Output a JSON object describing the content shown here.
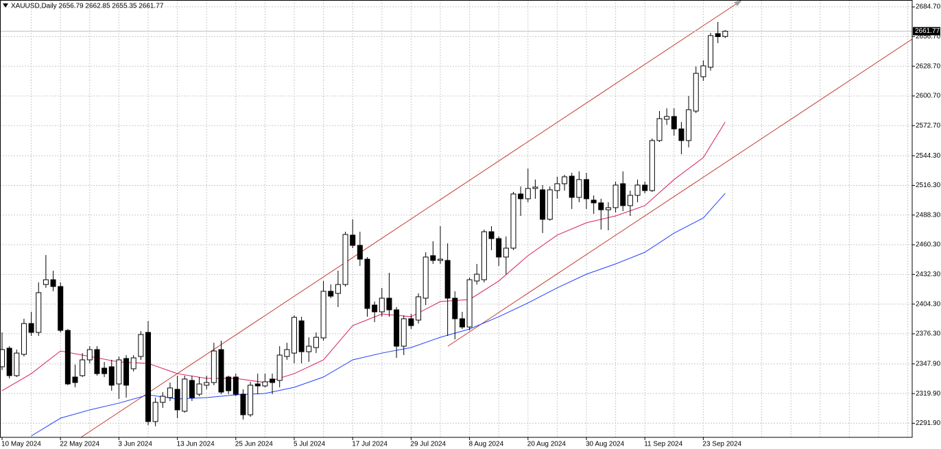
{
  "chart_data": {
    "type": "candlestick",
    "title": "XAUUSD,Daily 2656.79 2662.85 2655.35 2661.77",
    "categories": [
      "10 May 2024",
      null,
      null,
      null,
      null,
      null,
      null,
      null,
      "22 May 2024",
      null,
      null,
      null,
      null,
      null,
      null,
      null,
      "3 Jun 2024",
      null,
      null,
      null,
      null,
      null,
      null,
      null,
      "13 Jun 2024",
      null,
      null,
      null,
      null,
      null,
      null,
      null,
      "25 Jun 2024",
      null,
      null,
      null,
      null,
      null,
      null,
      null,
      "5 Jul 2024",
      null,
      null,
      null,
      null,
      null,
      null,
      null,
      "17 Jul 2024",
      null,
      null,
      null,
      null,
      null,
      null,
      null,
      "29 Jul 2024",
      null,
      null,
      null,
      null,
      null,
      null,
      null,
      "8 Aug 2024",
      null,
      null,
      null,
      null,
      null,
      null,
      null,
      "20 Aug 2024",
      null,
      null,
      null,
      null,
      null,
      null,
      null,
      "30 Aug 2024",
      null,
      null,
      null,
      null,
      null,
      null,
      null,
      "11 Sep 2024",
      null,
      null,
      null,
      null,
      null,
      null,
      null,
      "23 Sep 2024",
      null,
      null,
      null
    ],
    "open": [
      2345.2,
      2362.7,
      2336.8,
      2356.9,
      2386.0,
      2377.6,
      2422.8,
      2427.3,
      2420.9,
      2379.5,
      2335.5,
      2336.8,
      2351.7,
      2361.4,
      2343.9,
      2345.2,
      2329.0,
      2353.0,
      2343.3,
      2354.9,
      2377.6,
      2293.5,
      2311.6,
      2316.1,
      2323.9,
      2303.2,
      2332.3,
      2319.3,
      2327.8,
      2330.3,
      2361.4,
      2335.5,
      2335.5,
      2319.3,
      2299.9,
      2329.0,
      2327.1,
      2333.6,
      2332.3,
      2354.9,
      2358.1,
      2388.5,
      2359.4,
      2363.3,
      2372.4,
      2416.4,
      2414.4,
      2422.8,
      2469.4,
      2459.7,
      2446.7,
      2403.4,
      2397.0,
      2409.9,
      2398.9,
      2364.6,
      2390.5,
      2389.2,
      2409.9,
      2450.0,
      2445.5,
      2445.5,
      2409.9,
      2390.5,
      2382.7,
      2426.1,
      2427.3,
      2472.6,
      2466.1,
      2448.7,
      2457.1,
      2508.2,
      2503.7,
      2513.4,
      2512.1,
      2484.3,
      2511.4,
      2517.9,
      2525.0,
      2505.0,
      2521.8,
      2502.4,
      2499.8,
      2493.3,
      2495.3,
      2517.9,
      2497.2,
      2506.9,
      2516.6,
      2511.4,
      2558.6,
      2578.7,
      2581.3,
      2569.6,
      2558.6,
      2586.4,
      2618.8,
      2627.8,
      2659.5,
      2656.79
    ],
    "high": [
      2377.6,
      2364.6,
      2361.4,
      2390.5,
      2397.0,
      2424.8,
      2450.6,
      2435.8,
      2424.8,
      2380.8,
      2347.2,
      2358.1,
      2364.6,
      2364.6,
      2349.7,
      2351.7,
      2354.9,
      2356.2,
      2356.2,
      2378.8,
      2388.5,
      2316.1,
      2321.3,
      2330.3,
      2336.8,
      2336.8,
      2336.8,
      2335.5,
      2336.8,
      2367.8,
      2369.8,
      2336.8,
      2338.7,
      2323.9,
      2331.0,
      2338.7,
      2338.7,
      2338.7,
      2364.6,
      2367.8,
      2393.7,
      2392.4,
      2373.0,
      2377.6,
      2426.1,
      2422.8,
      2435.8,
      2472.6,
      2484.3,
      2472.6,
      2448.7,
      2406.7,
      2419.6,
      2433.8,
      2401.5,
      2393.7,
      2395.0,
      2414.4,
      2453.2,
      2463.6,
      2477.8,
      2461.6,
      2416.4,
      2397.0,
      2429.3,
      2442.2,
      2474.6,
      2477.8,
      2468.1,
      2468.1,
      2510.1,
      2515.3,
      2532.1,
      2521.8,
      2516.6,
      2515.3,
      2524.4,
      2526.3,
      2528.2,
      2529.5,
      2528.2,
      2506.9,
      2503.7,
      2500.4,
      2519.8,
      2529.5,
      2511.4,
      2521.8,
      2519.8,
      2560.6,
      2586.4,
      2589.0,
      2589.0,
      2576.1,
      2600.7,
      2628.5,
      2634.3,
      2660.2,
      2670.5,
      2662.85
    ],
    "low": [
      2342.0,
      2334.2,
      2335.5,
      2354.9,
      2374.3,
      2374.3,
      2419.6,
      2416.4,
      2377.6,
      2327.8,
      2325.8,
      2335.5,
      2348.4,
      2336.8,
      2335.5,
      2322.6,
      2314.8,
      2316.1,
      2340.7,
      2351.7,
      2290.2,
      2289.0,
      2306.4,
      2312.9,
      2296.7,
      2301.9,
      2312.9,
      2317.4,
      2323.9,
      2327.8,
      2319.3,
      2319.3,
      2317.4,
      2295.4,
      2298.0,
      2319.3,
      2325.8,
      2319.3,
      2325.8,
      2351.7,
      2348.4,
      2348.4,
      2349.7,
      2358.1,
      2369.8,
      2409.9,
      2401.5,
      2420.9,
      2457.1,
      2440.3,
      2392.4,
      2387.3,
      2392.4,
      2392.4,
      2353.6,
      2356.2,
      2380.8,
      2386.0,
      2403.4,
      2442.2,
      2442.2,
      2374.3,
      2371.1,
      2380.8,
      2379.5,
      2422.8,
      2424.8,
      2455.2,
      2440.3,
      2432.5,
      2455.2,
      2487.5,
      2500.4,
      2503.7,
      2471.3,
      2483.0,
      2503.7,
      2511.4,
      2494.0,
      2500.4,
      2494.0,
      2489.4,
      2474.6,
      2473.9,
      2490.7,
      2492.0,
      2487.5,
      2500.4,
      2508.8,
      2510.1,
      2557.3,
      2573.5,
      2563.2,
      2545.7,
      2552.2,
      2584.5,
      2614.9,
      2624.6,
      2650.5,
      2655.35
    ],
    "close": [
      2361.4,
      2336.8,
      2358.1,
      2386.0,
      2377.6,
      2415.1,
      2427.3,
      2420.9,
      2379.5,
      2329.0,
      2330.3,
      2351.7,
      2361.4,
      2338.7,
      2338.7,
      2327.8,
      2351.7,
      2327.8,
      2353.6,
      2375.6,
      2293.5,
      2311.6,
      2317.4,
      2325.2,
      2304.5,
      2333.6,
      2316.1,
      2329.0,
      2330.3,
      2360.1,
      2321.3,
      2322.6,
      2319.3,
      2299.9,
      2327.8,
      2327.1,
      2331.0,
      2330.3,
      2356.2,
      2361.4,
      2391.8,
      2359.4,
      2364.6,
      2373.0,
      2416.4,
      2411.8,
      2422.8,
      2470.0,
      2459.7,
      2446.7,
      2400.2,
      2397.0,
      2409.9,
      2398.9,
      2364.6,
      2390.5,
      2384.0,
      2411.2,
      2448.7,
      2445.5,
      2446.7,
      2409.9,
      2390.5,
      2382.7,
      2427.3,
      2432.5,
      2472.6,
      2466.1,
      2448.7,
      2457.1,
      2508.2,
      2503.7,
      2513.4,
      2514.7,
      2484.3,
      2512.1,
      2517.9,
      2524.4,
      2505.0,
      2521.8,
      2503.7,
      2499.8,
      2493.3,
      2495.3,
      2516.6,
      2497.2,
      2506.9,
      2516.6,
      2511.4,
      2558.6,
      2579.3,
      2581.3,
      2569.6,
      2558.6,
      2587.7,
      2622.0,
      2629.1,
      2657.6,
      2656.6,
      2661.77
    ],
    "up_color": "#ffffff",
    "down_color": "#000000",
    "overlays": [
      {
        "color": "#d81b60",
        "x": [
          0,
          4,
          8,
          12,
          16,
          20,
          24,
          28,
          32,
          36,
          40,
          44,
          48,
          52,
          56,
          60,
          64,
          68,
          72,
          76,
          80,
          84,
          88,
          92,
          96,
          99
        ],
        "values": [
          2322.6,
          2338.7,
          2360.1,
          2354.9,
          2349.7,
          2348.4,
          2338.7,
          2334.2,
          2334.2,
          2330.3,
          2338.7,
          2351.7,
          2384.0,
          2395.0,
          2392.4,
          2406.7,
          2408.6,
          2426.1,
          2450.0,
          2469.4,
          2481.0,
          2487.5,
          2497.2,
          2521.8,
          2542.5,
          2576.1
        ]
      },
      {
        "color": "#1f3fff",
        "x": [
          4,
          8,
          12,
          16,
          20,
          24,
          28,
          32,
          36,
          40,
          44,
          48,
          52,
          56,
          60,
          64,
          68,
          72,
          76,
          80,
          84,
          88,
          92,
          96,
          99
        ],
        "values": [
          2279.9,
          2296.7,
          2304.5,
          2310.9,
          2318.7,
          2314.8,
          2316.1,
          2318.7,
          2320.0,
          2325.8,
          2335.5,
          2351.7,
          2358.1,
          2363.3,
          2373.0,
          2380.8,
          2392.4,
          2405.4,
          2419.6,
          2432.5,
          2442.2,
          2453.2,
          2471.3,
          2485.6,
          2508.8
        ]
      }
    ],
    "last_price": 2661.77,
    "ylim": [
      2278.6,
      2691.2
    ],
    "yticks": [
      {
        "value": 2684.7,
        "label": "2684.70"
      },
      {
        "value": 2656.7,
        "label": "2656.70"
      },
      {
        "value": 2628.7,
        "label": "2628.70"
      },
      {
        "value": 2600.7,
        "label": "2600.70"
      },
      {
        "value": 2572.7,
        "label": "2572.70"
      },
      {
        "value": 2544.3,
        "label": "2544.30"
      },
      {
        "value": 2516.3,
        "label": "2516.30"
      },
      {
        "value": 2488.3,
        "label": "2488.30"
      },
      {
        "value": 2460.3,
        "label": "2460.30"
      },
      {
        "value": 2432.3,
        "label": "2432.30"
      },
      {
        "value": 2404.3,
        "label": "2404.30"
      },
      {
        "value": 2376.3,
        "label": "2376.30"
      },
      {
        "value": 2347.9,
        "label": "2347.90"
      },
      {
        "value": 2319.9,
        "label": "2319.90"
      },
      {
        "value": 2291.9,
        "label": "2291.90"
      }
    ],
    "grid": true
  }
}
